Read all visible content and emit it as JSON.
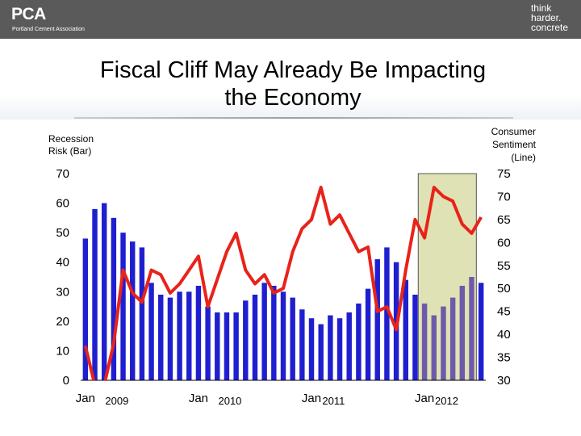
{
  "header": {
    "logo_text": "PCA",
    "logo_subtitle": "Portland Cement Association",
    "tagline_lines": [
      "think",
      "harder.",
      "concrete"
    ]
  },
  "title_lines": [
    "Fiscal Cliff May Already Be Impacting",
    "the Economy"
  ],
  "colors": {
    "bar": "#1f1fd0",
    "bar_highlight": "#6e5aa8",
    "line": "#e8231a",
    "highlight_fill": "#dfe2b4",
    "highlight_border": "#555555",
    "header_bg": "#5a5a5a"
  },
  "chart_data": {
    "type": "bar",
    "title": "Fiscal Cliff May Already Be Impacting the Economy",
    "left_axis": {
      "label_lines": [
        "Recession",
        "Risk (Bar)"
      ],
      "range": [
        0,
        70
      ],
      "ticks": [
        0,
        10,
        20,
        30,
        40,
        50,
        60,
        70
      ]
    },
    "right_axis": {
      "label_lines": [
        "Consumer",
        "Sentiment",
        "(Line)"
      ],
      "range": [
        30,
        75
      ],
      "ticks": [
        30,
        35,
        40,
        45,
        50,
        55,
        60,
        65,
        70,
        75
      ]
    },
    "x_labels": [
      {
        "text": "Jan",
        "index": 0,
        "style": "large"
      },
      {
        "text": "2009",
        "index": 3,
        "style": "small"
      },
      {
        "text": "Jan",
        "index": 12,
        "style": "large"
      },
      {
        "text": "2010",
        "index": 15,
        "style": "small"
      },
      {
        "text": "Jan",
        "index": 24,
        "style": "large"
      },
      {
        "text": "2011",
        "index": 26,
        "style": "small"
      },
      {
        "text": "Jan",
        "index": 36,
        "style": "large"
      },
      {
        "text": "2012",
        "index": 38,
        "style": "small"
      }
    ],
    "highlight_range": [
      36,
      41
    ],
    "series": [
      {
        "type": "bar",
        "axis": "left",
        "values": [
          48,
          58,
          60,
          55,
          50,
          47,
          45,
          33,
          29,
          28,
          30,
          30,
          32,
          25,
          23,
          23,
          23,
          27,
          29,
          33,
          32,
          30,
          28,
          24,
          21,
          19,
          22,
          21,
          23,
          26,
          31,
          41,
          45,
          40,
          34,
          29,
          26,
          22,
          25,
          28,
          32,
          35,
          33
        ]
      },
      {
        "type": "line",
        "axis": "right",
        "values": [
          37.5,
          29,
          29,
          38,
          54,
          49,
          47,
          54,
          53,
          49,
          51,
          54,
          57,
          46,
          52,
          58,
          62,
          54,
          51,
          53,
          49,
          50,
          58,
          63,
          65,
          72,
          64,
          66,
          62,
          58,
          59,
          45,
          46,
          41,
          54,
          65,
          61,
          72,
          70,
          69,
          64,
          62,
          65.5
        ]
      }
    ]
  }
}
